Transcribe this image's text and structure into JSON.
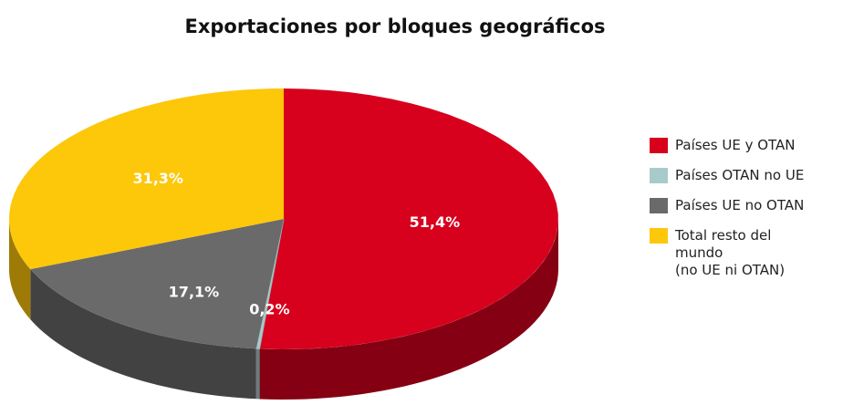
{
  "chart_data": {
    "type": "pie",
    "title": "Exportaciones por bloques geográficos",
    "categories": [
      "Países UE y OTAN",
      "Países OTAN no UE",
      "Países UE no OTAN",
      "Total resto del\nmundo\n(no UE ni OTAN)"
    ],
    "values": [
      51.4,
      0.2,
      17.1,
      31.3
    ],
    "value_labels": [
      "51,4%",
      "0,2%",
      "17,1%",
      "31,3%"
    ],
    "colors": [
      "#d7001d",
      "#a9cacb",
      "#6a6a6a",
      "#fdc70a"
    ],
    "legend": "right"
  }
}
